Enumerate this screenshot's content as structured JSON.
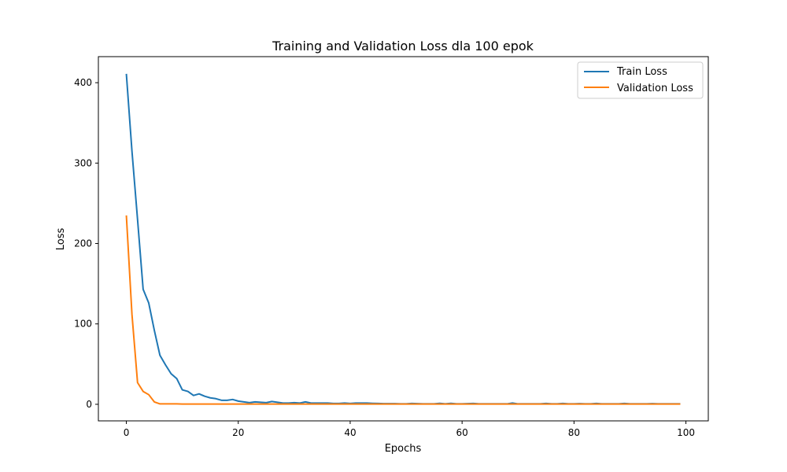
{
  "chart_data": {
    "type": "line",
    "title": "Training and Validation Loss dla 100 epok",
    "xlabel": "Epochs",
    "ylabel": "Loss",
    "xlim": [
      -5,
      104
    ],
    "ylim": [
      -20.6,
      432.4
    ],
    "xticks": [
      0,
      20,
      40,
      60,
      80,
      100
    ],
    "yticks": [
      0,
      100,
      200,
      300,
      400
    ],
    "grid": false,
    "legend_position": "top-right",
    "series": [
      {
        "name": "Train Loss",
        "color": "#1f77b4",
        "x": [
          0,
          1,
          2,
          3,
          4,
          5,
          6,
          7,
          8,
          9,
          10,
          11,
          12,
          13,
          14,
          15,
          16,
          17,
          18,
          19,
          20,
          21,
          22,
          23,
          24,
          25,
          26,
          27,
          28,
          29,
          30,
          31,
          32,
          33,
          34,
          35,
          36,
          37,
          38,
          39,
          40,
          41,
          42,
          43,
          44,
          45,
          46,
          47,
          48,
          49,
          50,
          51,
          52,
          53,
          54,
          55,
          56,
          57,
          58,
          59,
          60,
          61,
          62,
          63,
          64,
          65,
          66,
          67,
          68,
          69,
          70,
          71,
          72,
          73,
          74,
          75,
          76,
          77,
          78,
          79,
          80,
          81,
          82,
          83,
          84,
          85,
          86,
          87,
          88,
          89,
          90,
          91,
          92,
          93,
          94,
          95,
          96,
          97,
          98,
          99
        ],
        "values": [
          411,
          315,
          230,
          143,
          126,
          92,
          61,
          49,
          38,
          32,
          18,
          16,
          11,
          13,
          10,
          8,
          7,
          5,
          5,
          6,
          4,
          3,
          2,
          3,
          2.5,
          2,
          3.5,
          2.5,
          1.5,
          1.5,
          2,
          1.5,
          3,
          1.5,
          1.5,
          1.5,
          1.5,
          1,
          1,
          1.5,
          1,
          1.5,
          1.5,
          1.5,
          1.2,
          1,
          0.8,
          0.8,
          0.8,
          0.6,
          0.6,
          1,
          0.8,
          0.6,
          0.6,
          0.6,
          1.2,
          0.6,
          1.2,
          0.6,
          0.6,
          0.8,
          1,
          0.5,
          0.5,
          0.5,
          0.5,
          0.5,
          0.5,
          1.5,
          0.5,
          0.5,
          0.5,
          0.5,
          0.5,
          1,
          0.5,
          0.5,
          1,
          0.5,
          0.5,
          0.8,
          0.5,
          0.5,
          1,
          0.5,
          0.5,
          0.5,
          0.5,
          1,
          0.5,
          0.5,
          0.5,
          0.5,
          0.8,
          0.5,
          0.5,
          0.5,
          0.5,
          0.5
        ]
      },
      {
        "name": "Validation Loss",
        "color": "#ff7f0e",
        "x": [
          0,
          1,
          2,
          3,
          4,
          5,
          6,
          7,
          8,
          9,
          10,
          11,
          12,
          13,
          14,
          15,
          16,
          17,
          18,
          19,
          20,
          21,
          22,
          23,
          24,
          25,
          26,
          27,
          28,
          29,
          30,
          31,
          32,
          33,
          34,
          35,
          36,
          37,
          38,
          39,
          40,
          41,
          42,
          43,
          44,
          45,
          46,
          47,
          48,
          49,
          50,
          51,
          52,
          53,
          54,
          55,
          56,
          57,
          58,
          59,
          60,
          61,
          62,
          63,
          64,
          65,
          66,
          67,
          68,
          69,
          70,
          71,
          72,
          73,
          74,
          75,
          76,
          77,
          78,
          79,
          80,
          81,
          82,
          83,
          84,
          85,
          86,
          87,
          88,
          89,
          90,
          91,
          92,
          93,
          94,
          95,
          96,
          97,
          98,
          99
        ],
        "values": [
          235,
          112,
          27,
          16,
          12,
          3,
          0.5,
          0.5,
          0.5,
          0.5,
          0.3,
          0.3,
          0.3,
          0.3,
          0.3,
          0.3,
          0.3,
          0.3,
          0.3,
          0.3,
          0.3,
          0.3,
          0.3,
          0.3,
          0.3,
          0.3,
          0.3,
          0.3,
          0.3,
          0.3,
          0.3,
          0.3,
          0.3,
          0.3,
          0.3,
          0.3,
          0.3,
          0.3,
          0.3,
          0.3,
          0.3,
          0.3,
          0.3,
          0.3,
          0.3,
          0.3,
          0.3,
          0.3,
          0.3,
          0.3,
          0.3,
          0.3,
          0.3,
          0.3,
          0.3,
          0.3,
          0.3,
          0.3,
          0.3,
          0.3,
          0.3,
          0.3,
          0.3,
          0.3,
          0.3,
          0.3,
          0.3,
          0.3,
          0.3,
          0.3,
          0.3,
          0.3,
          0.3,
          0.3,
          0.3,
          0.3,
          0.3,
          0.3,
          0.3,
          0.3,
          0.3,
          0.3,
          0.3,
          0.3,
          0.3,
          0.3,
          0.3,
          0.3,
          0.3,
          0.3,
          0.3,
          0.3,
          0.3,
          0.3,
          0.3,
          0.3,
          0.3,
          0.3,
          0.3,
          0.3
        ]
      }
    ]
  }
}
